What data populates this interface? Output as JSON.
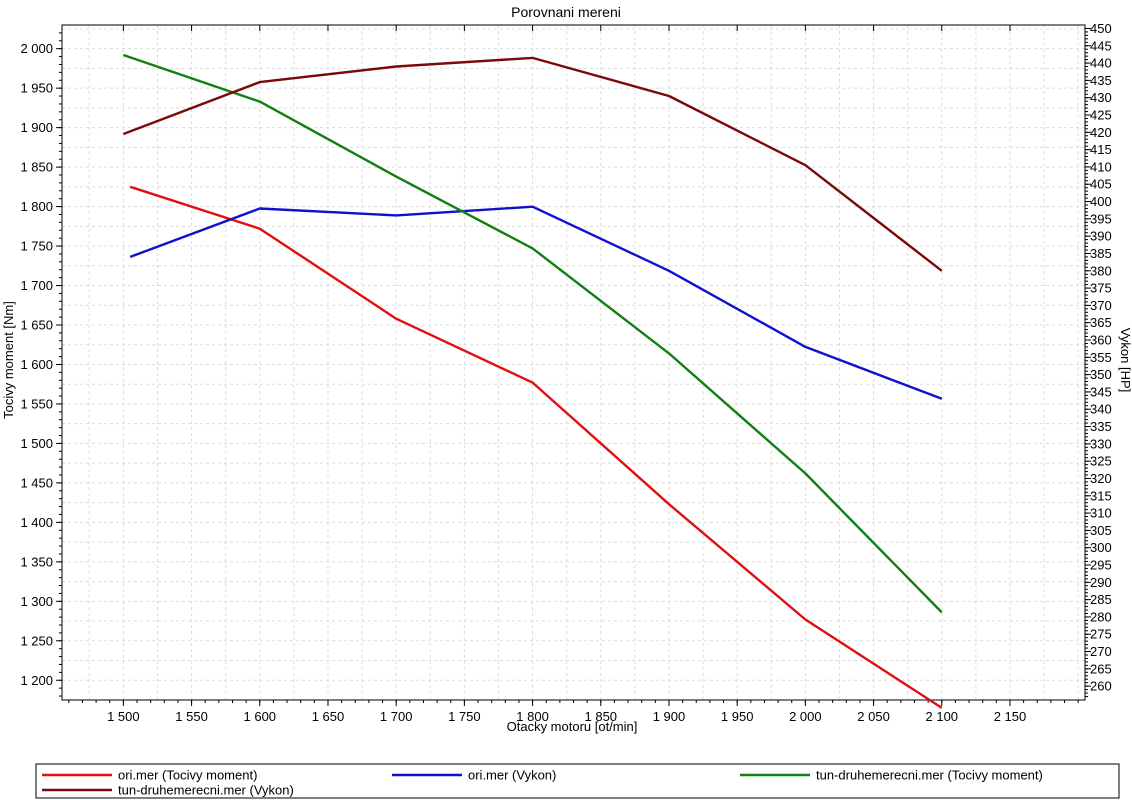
{
  "chart_data": {
    "type": "line",
    "title": "Porovnani mereni",
    "xlabel": "Otacky motoru [ot/min]",
    "ylabel": "Tocivy moment [Nm]",
    "y2label": "Vykon [HP]",
    "xlim": [
      1455,
      2205
    ],
    "ylim": [
      1175,
      2030
    ],
    "y2lim": [
      256,
      451
    ],
    "x_ticks": [
      1500,
      1550,
      1600,
      1650,
      1700,
      1750,
      1800,
      1850,
      1900,
      1950,
      2000,
      2050,
      2100,
      2150
    ],
    "x_tick_labels": [
      "1 500",
      "1 550",
      "1 600",
      "1 650",
      "1 700",
      "1 750",
      "1 800",
      "1 850",
      "1 900",
      "1 950",
      "2 000",
      "2 050",
      "2 100",
      "2 150"
    ],
    "y_ticks": [
      1200,
      1250,
      1300,
      1350,
      1400,
      1450,
      1500,
      1550,
      1600,
      1650,
      1700,
      1750,
      1800,
      1850,
      1900,
      1950,
      2000
    ],
    "y_tick_labels": [
      "1 200",
      "1 250",
      "1 300",
      "1 350",
      "1 400",
      "1 450",
      "1 500",
      "1 550",
      "1 600",
      "1 650",
      "1 700",
      "1 750",
      "1 800",
      "1 850",
      "1 900",
      "1 950",
      "2 000"
    ],
    "y2_ticks": [
      260,
      265,
      270,
      275,
      280,
      285,
      290,
      295,
      300,
      305,
      310,
      315,
      320,
      325,
      330,
      335,
      340,
      345,
      350,
      355,
      360,
      365,
      370,
      375,
      380,
      385,
      390,
      395,
      400,
      405,
      410,
      415,
      420,
      425,
      430,
      435,
      440,
      445,
      450
    ],
    "grid": true,
    "legend_position": "bottom",
    "series": [
      {
        "name": "ori.mer  (Tocivy moment)",
        "axis": "left",
        "color": "#e01010",
        "x": [
          1505,
          1600,
          1700,
          1800,
          1900,
          2000,
          2100
        ],
        "values": [
          1825,
          1772,
          1658,
          1577,
          1423,
          1277,
          1165
        ]
      },
      {
        "name": "ori.mer  (Vykon)",
        "axis": "right",
        "color": "#1010d0",
        "x": [
          1505,
          1600,
          1700,
          1800,
          1900,
          2000,
          2100
        ],
        "values": [
          384,
          398,
          396,
          398.5,
          380,
          358,
          343
        ]
      },
      {
        "name": "tun-druhemerecni.mer  (Tocivy moment)",
        "axis": "left",
        "color": "#108010",
        "x": [
          1500,
          1600,
          1700,
          1800,
          1900,
          2000,
          2100
        ],
        "values": [
          1992,
          1933,
          1838,
          1747,
          1614,
          1462,
          1286
        ]
      },
      {
        "name": "tun-druhemerecni.mer  (Vykon)",
        "axis": "right",
        "color": "#7a0a0a",
        "x": [
          1500,
          1600,
          1700,
          1800,
          1900,
          2000,
          2100
        ],
        "values": [
          419.5,
          434.5,
          439,
          441.5,
          430.5,
          410.5,
          380
        ]
      }
    ]
  }
}
